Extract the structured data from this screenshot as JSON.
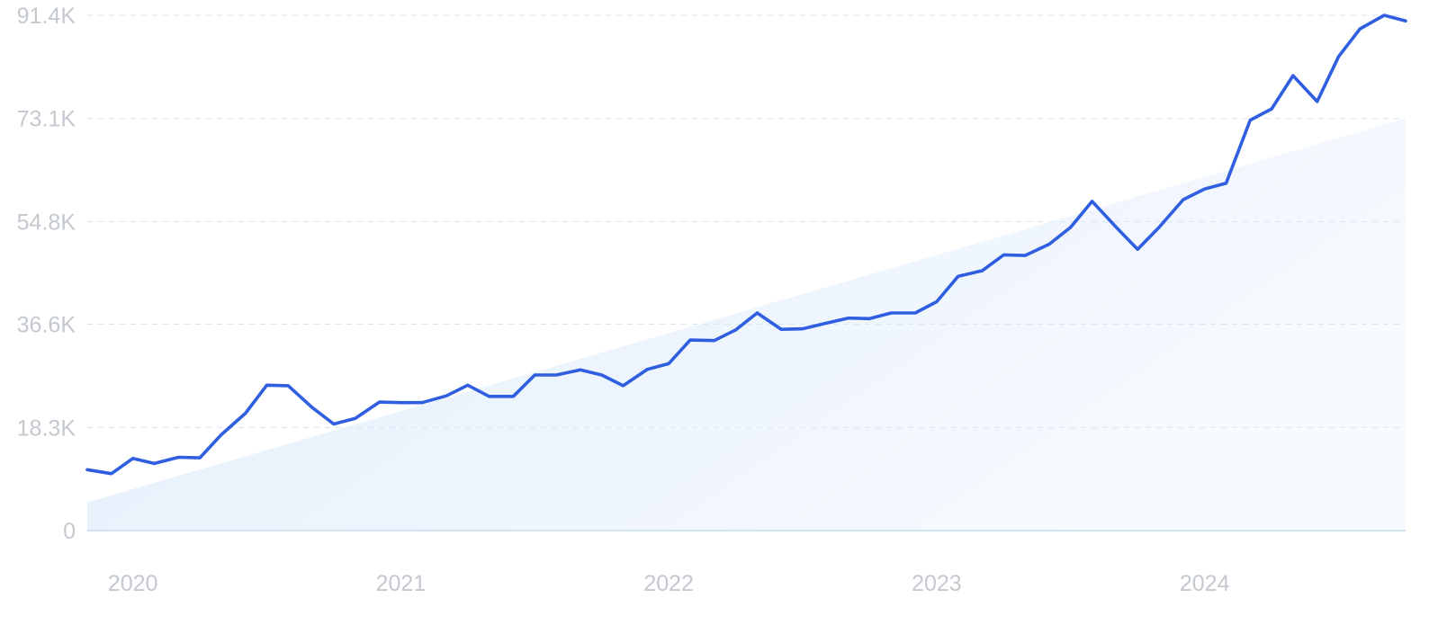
{
  "chart_data": {
    "type": "line",
    "title": "",
    "xlabel": "",
    "ylabel": "",
    "ylim": [
      0,
      91400
    ],
    "xlim": [
      2019.83,
      2024.75
    ],
    "yticks": [
      0,
      18300,
      36600,
      54800,
      73100,
      91400
    ],
    "ytick_labels": [
      "0",
      "18.3K",
      "36.6K",
      "54.8K",
      "73.1K",
      "91.4K"
    ],
    "xticks": [
      2020,
      2021,
      2022,
      2023,
      2024
    ],
    "xtick_labels": [
      "2020",
      "2021",
      "2022",
      "2023",
      "2024"
    ],
    "grid": "horizontal dashed",
    "legend": "none",
    "series": [
      {
        "role": "search volume",
        "x": [
          2019.83,
          2019.92,
          2020.0,
          2020.08,
          2020.17,
          2020.25,
          2020.33,
          2020.42,
          2020.5,
          2020.58,
          2020.67,
          2020.75,
          2020.83,
          2020.92,
          2021.0,
          2021.08,
          2021.17,
          2021.25,
          2021.33,
          2021.42,
          2021.5,
          2021.58,
          2021.67,
          2021.75,
          2021.83,
          2021.92,
          2022.0,
          2022.08,
          2022.17,
          2022.25,
          2022.33,
          2022.42,
          2022.5,
          2022.58,
          2022.67,
          2022.75,
          2022.83,
          2022.92,
          2023.0,
          2023.08,
          2023.17,
          2023.25,
          2023.33,
          2023.42,
          2023.5,
          2023.58,
          2023.67,
          2023.75,
          2023.83,
          2023.92,
          2024.0,
          2024.08,
          2024.17,
          2024.25,
          2024.33,
          2024.42,
          2024.5,
          2024.58,
          2024.67,
          2024.75
        ],
        "values": [
          10800,
          10100,
          12800,
          11900,
          13000,
          12900,
          17000,
          20800,
          25800,
          25700,
          21800,
          18900,
          19900,
          22800,
          22700,
          22700,
          23900,
          25800,
          23800,
          23800,
          27600,
          27600,
          28500,
          27600,
          25700,
          28600,
          29600,
          33800,
          33700,
          35600,
          38600,
          35700,
          35800,
          36700,
          37700,
          37600,
          38600,
          38600,
          40600,
          45100,
          46100,
          48900,
          48800,
          50800,
          53800,
          58400,
          53800,
          49900,
          53800,
          58700,
          60600,
          61600,
          72800,
          74800,
          80700,
          76100,
          84100,
          89000,
          91400,
          90400
        ]
      },
      {
        "role": "trend",
        "x": [
          2019.83,
          2024.75
        ],
        "values": [
          5000,
          73100
        ]
      }
    ],
    "colors": {
      "line": "#2f5fe0",
      "trend_fill": "#e3eefb",
      "grid": "#d6e6f2",
      "tick": "#c4c9d0",
      "baseline": "#b9d6ee"
    }
  }
}
